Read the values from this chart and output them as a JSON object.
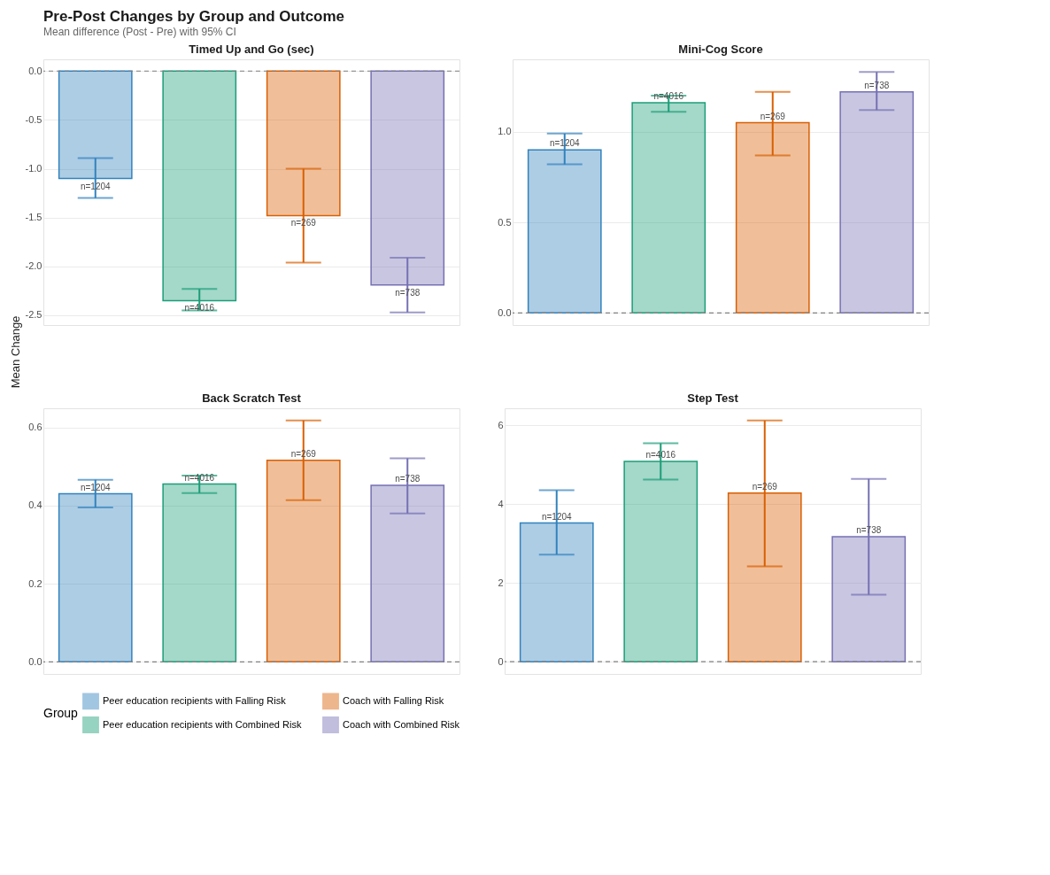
{
  "chart_data": [
    {
      "type": "other",
      "title": "Pre-Post Changes by Group and Outcome",
      "subtitle": "Mean difference (Post - Pre) with 95% CI"
    },
    {
      "type": "bar",
      "title": "Timed Up and Go (sec)",
      "ylabel": "Mean Change",
      "legend": "bottom",
      "legend_title": "Group",
      "grid": "y",
      "tick_labels": "y",
      "categories": [
        null,
        null,
        null,
        null
      ],
      "ylim": [
        -2.6,
        0.12
      ],
      "yticks": [
        {
          "value": 0.0,
          "label": "0.0"
        },
        {
          "value": -0.5,
          "label": "-0.5"
        },
        {
          "value": -1.0,
          "label": "-1.0"
        },
        {
          "value": -1.5,
          "label": "-1.5"
        },
        {
          "value": -2.0,
          "label": "-2.0"
        },
        {
          "value": -2.5,
          "label": "-2.5"
        }
      ],
      "ref_lines": [
        {
          "axis": "y",
          "value": 0,
          "line_style": "dashed",
          "color": "#808080"
        }
      ],
      "annotations": [
        {
          "text": "n=1204",
          "y": -1.1
        },
        {
          "text": "n=4016",
          "y": -2.35
        },
        {
          "text": "n=269",
          "y": -1.48
        },
        {
          "text": "n=738",
          "y": -2.19
        }
      ],
      "series": [
        {
          "name": "Peer education recipients with Falling Risk",
          "color": "#3182bd",
          "values": [
            -1.1,
            null,
            null,
            null
          ],
          "errors": [
            [
              -1.3,
              -0.89
            ],
            null,
            null,
            null
          ]
        },
        {
          "name": "Peer education recipients with Combined Risk",
          "color": "#1b9e77",
          "values": [
            null,
            -2.35,
            null,
            null
          ],
          "errors": [
            null,
            [
              -2.45,
              -2.23
            ],
            null,
            null
          ]
        },
        {
          "name": "Coach with Falling Risk",
          "color": "#d95f02",
          "values": [
            null,
            null,
            -1.48,
            null
          ],
          "errors": [
            null,
            null,
            [
              -1.96,
              -1.0
            ],
            null
          ]
        },
        {
          "name": "Coach with Combined Risk",
          "color": "#7570b3",
          "values": [
            null,
            null,
            null,
            -2.19
          ],
          "errors": [
            null,
            null,
            null,
            [
              -2.47,
              -1.91
            ]
          ]
        }
      ]
    },
    {
      "type": "bar",
      "title": "Mini-Cog Score",
      "grid": "y",
      "tick_labels": "y",
      "categories": [
        null,
        null,
        null,
        null
      ],
      "ylim": [
        -0.067,
        1.4
      ],
      "yticks": [
        {
          "value": 0.0,
          "label": "0.0"
        },
        {
          "value": 0.5,
          "label": "0.5"
        },
        {
          "value": 1.0,
          "label": "1.0"
        }
      ],
      "ref_lines": [
        {
          "axis": "y",
          "value": 0,
          "line_style": "dashed",
          "color": "#808080"
        }
      ],
      "annotations": [
        {
          "text": "n=1204",
          "y": 0.9
        },
        {
          "text": "n=4016",
          "y": 1.16
        },
        {
          "text": "n=269",
          "y": 1.05
        },
        {
          "text": "n=738",
          "y": 1.22
        }
      ],
      "series": [
        {
          "name": "Peer education recipients with Falling Risk",
          "color": "#3182bd",
          "values": [
            0.9,
            null,
            null,
            null
          ],
          "errors": [
            [
              0.82,
              0.99
            ],
            null,
            null,
            null
          ]
        },
        {
          "name": "Peer education recipients with Combined Risk",
          "color": "#1b9e77",
          "values": [
            null,
            1.16,
            null,
            null
          ],
          "errors": [
            null,
            [
              1.11,
              1.2
            ],
            null,
            null
          ]
        },
        {
          "name": "Coach with Falling Risk",
          "color": "#d95f02",
          "values": [
            null,
            null,
            1.05,
            null
          ],
          "errors": [
            null,
            null,
            [
              0.87,
              1.22
            ],
            null
          ]
        },
        {
          "name": "Coach with Combined Risk",
          "color": "#7570b3",
          "values": [
            null,
            null,
            null,
            1.22
          ],
          "errors": [
            null,
            null,
            null,
            [
              1.12,
              1.33
            ]
          ]
        }
      ]
    },
    {
      "type": "bar",
      "title": "Back Scratch Test",
      "grid": "y",
      "tick_labels": "y",
      "categories": [
        null,
        null,
        null,
        null
      ],
      "ylim": [
        -0.031,
        0.649
      ],
      "yticks": [
        {
          "value": 0.0,
          "label": "0.0"
        },
        {
          "value": 0.2,
          "label": "0.2"
        },
        {
          "value": 0.4,
          "label": "0.4"
        },
        {
          "value": 0.6,
          "label": "0.6"
        }
      ],
      "ref_lines": [
        {
          "axis": "y",
          "value": 0,
          "line_style": "dashed",
          "color": "#808080"
        }
      ],
      "annotations": [
        {
          "text": "n=1204",
          "y": 0.43
        },
        {
          "text": "n=4016",
          "y": 0.455
        },
        {
          "text": "n=269",
          "y": 0.516
        },
        {
          "text": "n=738",
          "y": 0.452
        }
      ],
      "series": [
        {
          "name": "Peer education recipients with Falling Risk",
          "color": "#3182bd",
          "values": [
            0.43,
            null,
            null,
            null
          ],
          "errors": [
            [
              0.395,
              0.466
            ],
            null,
            null,
            null
          ]
        },
        {
          "name": "Peer education recipients with Combined Risk",
          "color": "#1b9e77",
          "values": [
            null,
            0.455,
            null,
            null
          ],
          "errors": [
            null,
            [
              0.432,
              0.477
            ],
            null,
            null
          ]
        },
        {
          "name": "Coach with Falling Risk",
          "color": "#d95f02",
          "values": [
            null,
            null,
            0.516,
            null
          ],
          "errors": [
            null,
            null,
            [
              0.414,
              0.618
            ],
            null
          ]
        },
        {
          "name": "Coach with Combined Risk",
          "color": "#7570b3",
          "values": [
            null,
            null,
            null,
            0.452
          ],
          "errors": [
            null,
            null,
            null,
            [
              0.38,
              0.521
            ]
          ]
        }
      ]
    },
    {
      "type": "bar",
      "title": "Step Test",
      "grid": "y",
      "tick_labels": "y",
      "categories": [
        null,
        null,
        null,
        null
      ],
      "ylim": [
        -0.31,
        6.43
      ],
      "yticks": [
        0,
        2,
        4,
        6
      ],
      "ref_lines": [
        {
          "axis": "y",
          "value": 0,
          "line_style": "dashed",
          "color": "#808080"
        }
      ],
      "annotations": [
        {
          "text": "n=1204",
          "y": 3.52
        },
        {
          "text": "n=4016",
          "y": 5.08
        },
        {
          "text": "n=269",
          "y": 4.28
        },
        {
          "text": "n=738",
          "y": 3.17
        }
      ],
      "series": [
        {
          "name": "Peer education recipients with Falling Risk",
          "color": "#3182bd",
          "values": [
            3.52,
            null,
            null,
            null
          ],
          "errors": [
            [
              2.72,
              4.35
            ],
            null,
            null,
            null
          ]
        },
        {
          "name": "Peer education recipients with Combined Risk",
          "color": "#1b9e77",
          "values": [
            null,
            5.08,
            null,
            null
          ],
          "errors": [
            null,
            [
              4.62,
              5.54
            ],
            null,
            null
          ]
        },
        {
          "name": "Coach with Falling Risk",
          "color": "#d95f02",
          "values": [
            null,
            null,
            4.28,
            null
          ],
          "errors": [
            null,
            null,
            [
              2.42,
              6.12
            ],
            null
          ]
        },
        {
          "name": "Coach with Combined Risk",
          "color": "#7570b3",
          "values": [
            null,
            null,
            null,
            3.17
          ],
          "errors": [
            null,
            null,
            null,
            [
              1.7,
              4.64
            ]
          ]
        }
      ]
    }
  ]
}
